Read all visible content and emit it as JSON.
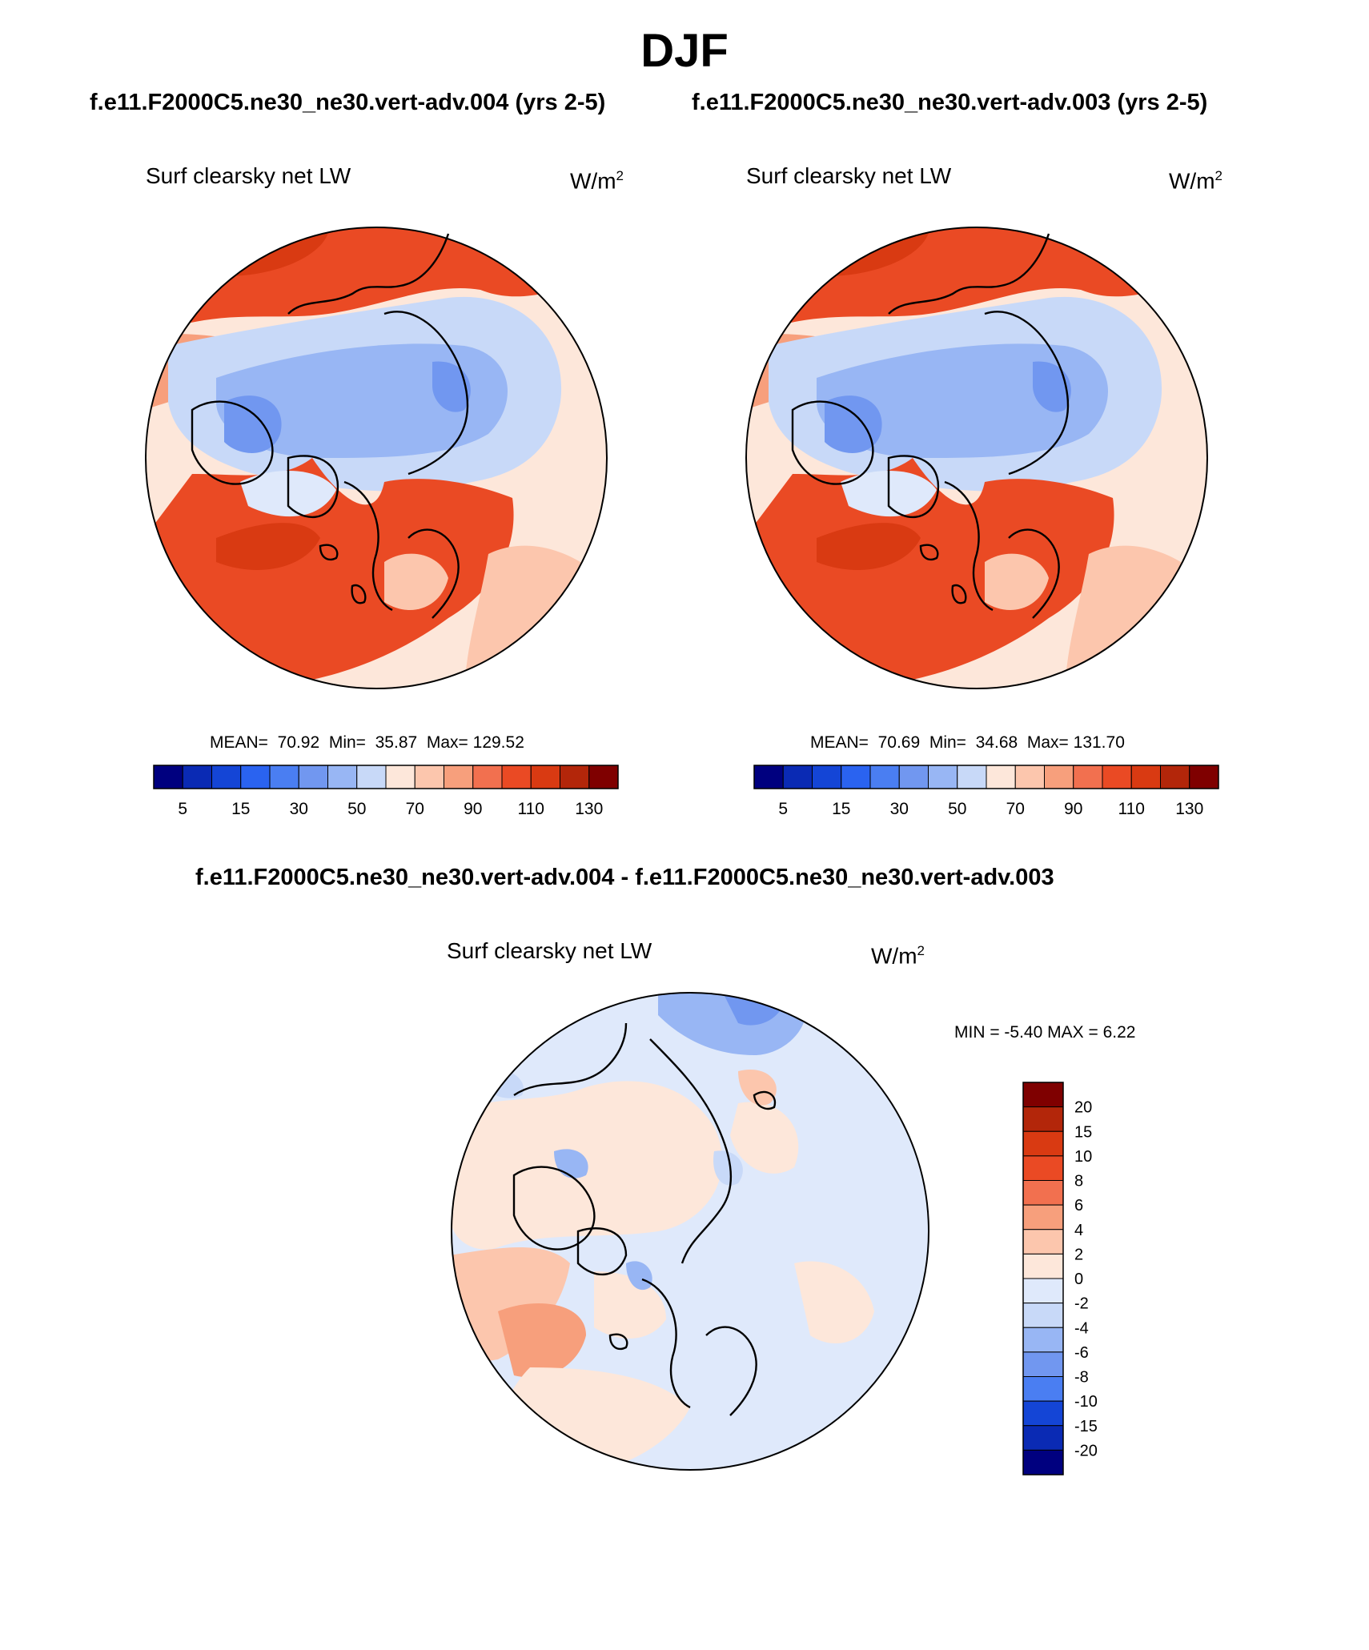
{
  "title": "DJF",
  "panels": [
    {
      "id": "left",
      "case_title": "f.e11.F2000C5.ne30_ne30.vert-adv.004 (yrs 2-5)",
      "variable": "Surf clearsky net LW",
      "unit_base": "W/m",
      "unit_exp": "2",
      "mean_label": "MEAN=",
      "mean": "70.92",
      "min_label": "Min=",
      "min": "35.87",
      "max_label": "Max=",
      "max": "129.52"
    },
    {
      "id": "right",
      "case_title": "f.e11.F2000C5.ne30_ne30.vert-adv.003 (yrs 2-5)",
      "variable": "Surf clearsky net LW",
      "unit_base": "W/m",
      "unit_exp": "2",
      "mean_label": "MEAN=",
      "mean": "70.69",
      "min_label": "Min=",
      "min": "34.68",
      "max_label": "Max=",
      "max": "131.70"
    }
  ],
  "abs_colorbar": {
    "colors": [
      "#00007f",
      "#0a2ab4",
      "#1445d6",
      "#2a63f0",
      "#4a7ef2",
      "#7197f0",
      "#98b6f4",
      "#c8d9f8",
      "#fde7da",
      "#fcc6ad",
      "#f79f7c",
      "#f2704f",
      "#ea4a24",
      "#d93a12",
      "#b3260a",
      "#7f0000"
    ],
    "ticks": [
      "5",
      "15",
      "30",
      "50",
      "70",
      "90",
      "110",
      "130"
    ]
  },
  "diff": {
    "title": "f.e11.F2000C5.ne30_ne30.vert-adv.004 - f.e11.F2000C5.ne30_ne30.vert-adv.003",
    "variable": "Surf clearsky net LW",
    "unit_base": "W/m",
    "unit_exp": "2",
    "minmax_text": "MIN =  -5.40 MAX =   6.22",
    "colorbar": {
      "colors": [
        "#7f0000",
        "#b3260a",
        "#d93a12",
        "#ea4a24",
        "#f2704f",
        "#f79f7c",
        "#fcc6ad",
        "#fde7da",
        "#dfe9fb",
        "#c8d9f8",
        "#98b6f4",
        "#7197f0",
        "#4a7ef2",
        "#1445d6",
        "#0a2ab4",
        "#00007f"
      ],
      "ticks": [
        "20",
        "15",
        "10",
        "8",
        "6",
        "4",
        "2",
        "0",
        "-2",
        "-4",
        "-6",
        "-8",
        "-10",
        "-15",
        "-20"
      ]
    }
  }
}
